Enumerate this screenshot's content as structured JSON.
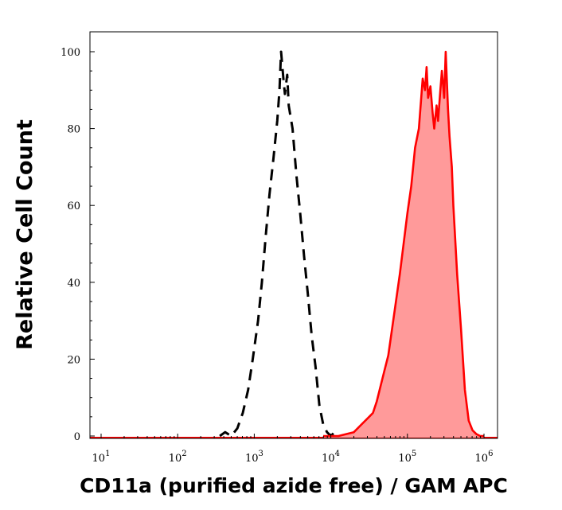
{
  "chart_data": {
    "type": "area",
    "xlabel": "CD11a (purified azide free) / GAM APC",
    "ylabel": "Relative Cell Count",
    "x_scale": "log",
    "xlim": [
      1,
      6.1
    ],
    "ylim": [
      0,
      105
    ],
    "x_ticks": [
      {
        "base": "10",
        "exp": "1",
        "value": 1
      },
      {
        "base": "10",
        "exp": "2",
        "value": 2
      },
      {
        "base": "10",
        "exp": "3",
        "value": 3
      },
      {
        "base": "10",
        "exp": "4",
        "value": 4
      },
      {
        "base": "10",
        "exp": "5",
        "value": 5
      },
      {
        "base": "10",
        "exp": "6",
        "value": 6
      }
    ],
    "y_ticks": [
      "0",
      "20",
      "40",
      "60",
      "80",
      "100"
    ],
    "grid": false,
    "series": [
      {
        "style": "dashed-black-line",
        "color": "#000000",
        "x": [
          2.55,
          2.62,
          2.7,
          2.78,
          2.85,
          2.92,
          2.98,
          3.05,
          3.1,
          3.15,
          3.2,
          3.25,
          3.3,
          3.33,
          3.35,
          3.38,
          3.4,
          3.43,
          3.45,
          3.5,
          3.55,
          3.6,
          3.65,
          3.7,
          3.75,
          3.8,
          3.85,
          3.9,
          3.95,
          4.0,
          4.05,
          4.1
        ],
        "values": [
          0,
          1,
          0,
          2,
          6,
          12,
          20,
          30,
          40,
          52,
          63,
          72,
          82,
          90,
          100,
          93,
          89,
          94,
          86,
          80,
          68,
          58,
          47,
          37,
          26,
          18,
          8,
          3,
          1,
          0,
          1,
          0
        ]
      },
      {
        "style": "red-filled-histogram",
        "color": "#ff0000",
        "fill": "#ff9a9a",
        "x": [
          3.9,
          4.0,
          4.1,
          4.2,
          4.3,
          4.4,
          4.5,
          4.55,
          4.6,
          4.65,
          4.7,
          4.75,
          4.8,
          4.85,
          4.9,
          4.95,
          5.0,
          5.05,
          5.1,
          5.15,
          5.2,
          5.23,
          5.25,
          5.27,
          5.3,
          5.33,
          5.35,
          5.38,
          5.4,
          5.43,
          5.45,
          5.48,
          5.5,
          5.53,
          5.55,
          5.58,
          5.6,
          5.65,
          5.7,
          5.75,
          5.8,
          5.85,
          5.9,
          5.95,
          6.0
        ],
        "values": [
          0,
          0,
          0,
          0.5,
          1,
          3,
          5,
          6,
          9,
          13,
          17,
          21,
          28,
          35,
          42,
          50,
          58,
          65,
          75,
          80,
          93,
          90,
          96,
          88,
          91,
          84,
          80,
          86,
          82,
          90,
          95,
          88,
          100,
          85,
          78,
          70,
          60,
          42,
          28,
          12,
          4,
          1.5,
          0.5,
          0,
          0
        ]
      }
    ]
  }
}
